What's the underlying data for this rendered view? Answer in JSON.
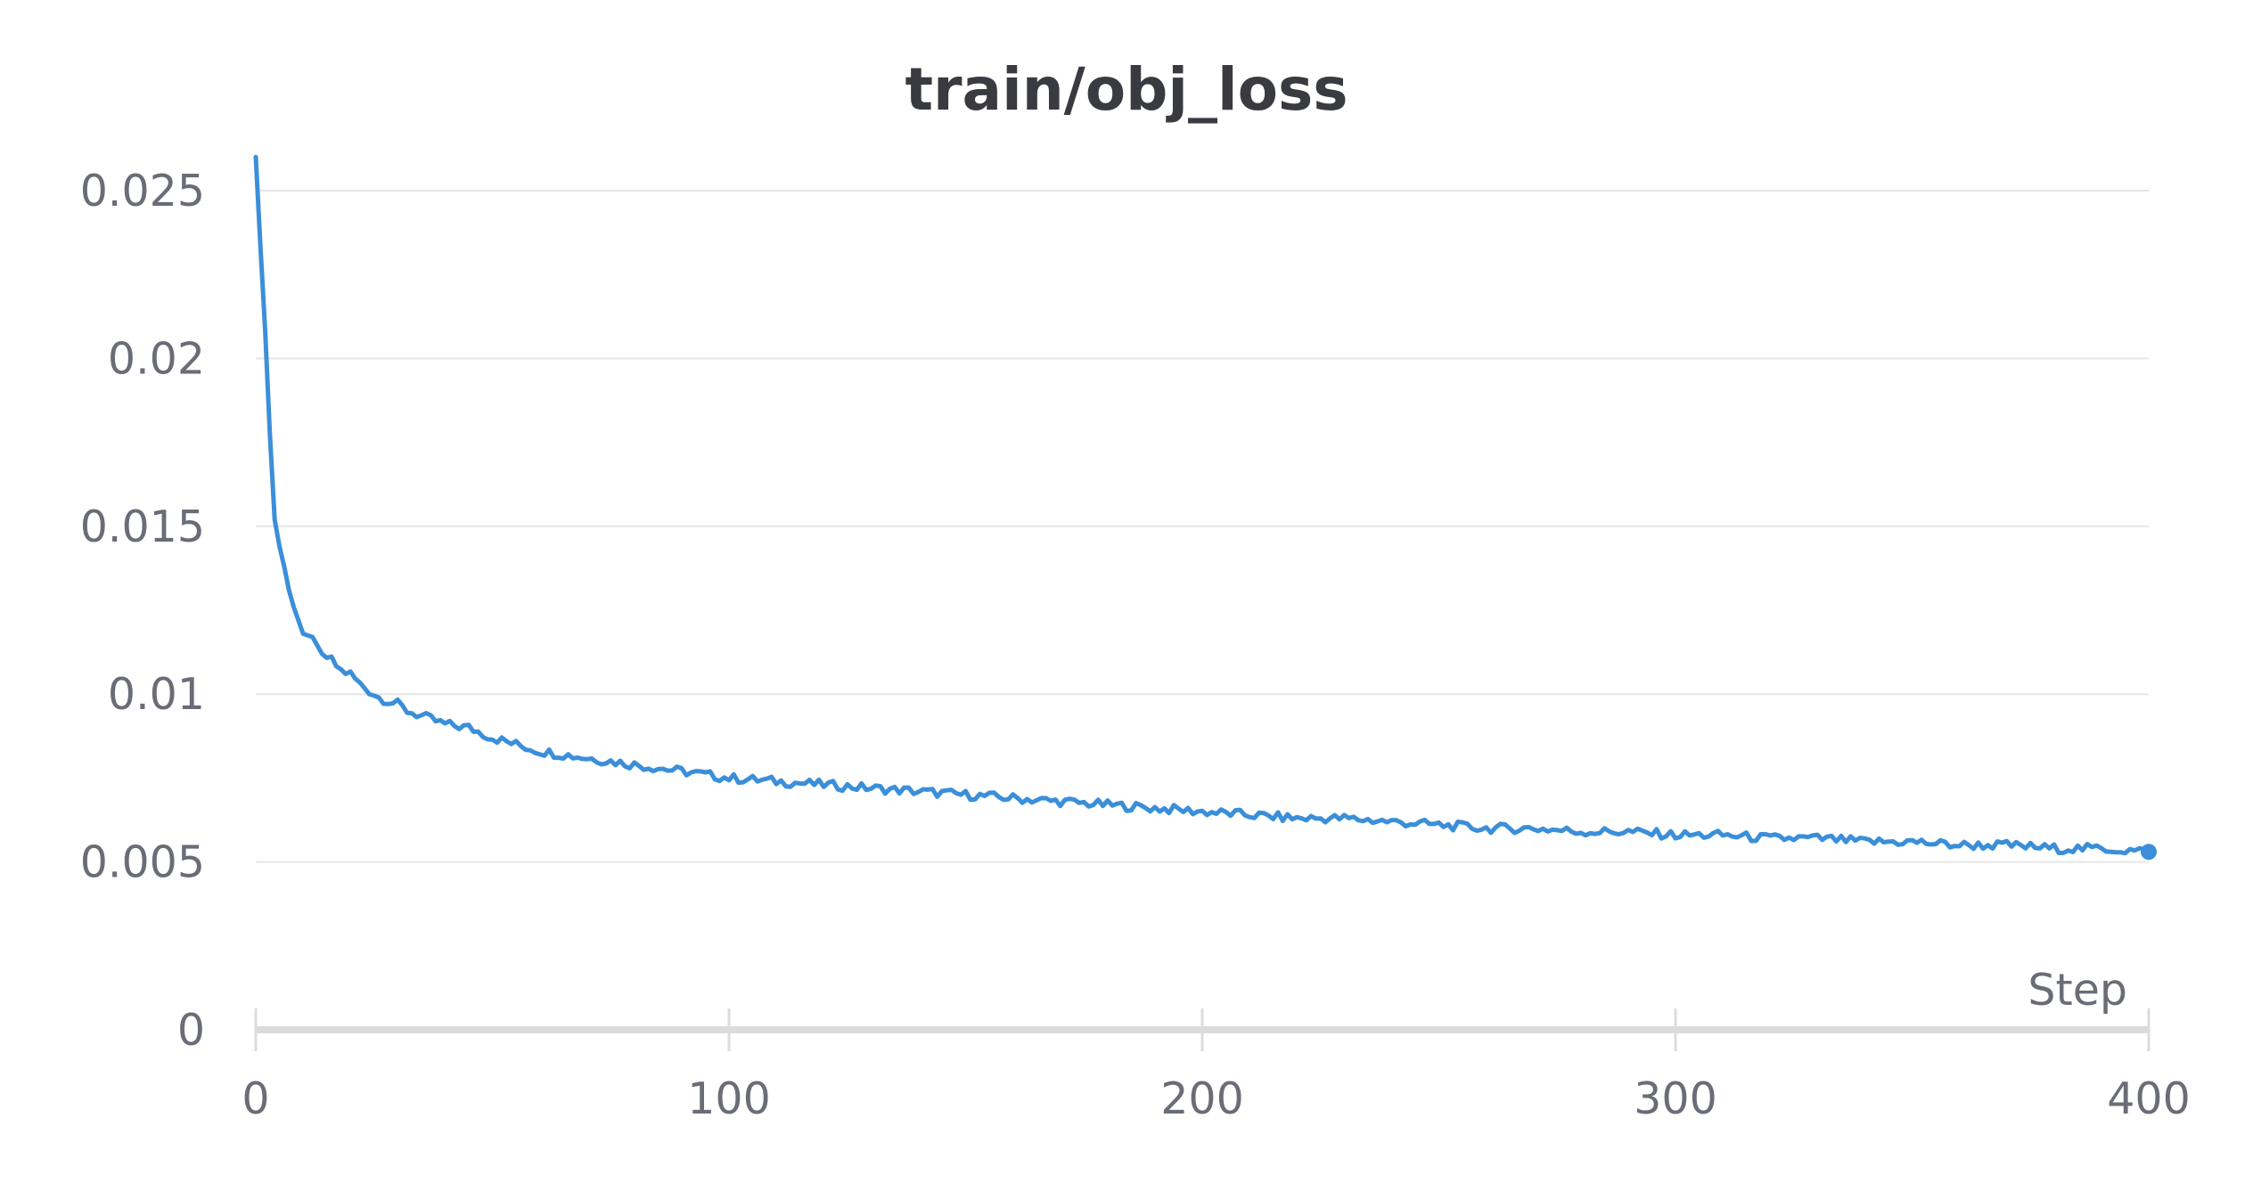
{
  "chart_data": {
    "type": "line",
    "title": "train/obj_loss",
    "xlabel": "Step",
    "ylabel": "",
    "xlim": [
      0,
      400
    ],
    "ylim": [
      0,
      0.026
    ],
    "x_ticks": [
      0,
      100,
      200,
      300,
      400
    ],
    "x_tick_labels": [
      "0",
      "100",
      "200",
      "300",
      "400"
    ],
    "y_ticks": [
      0,
      0.005,
      0.01,
      0.015,
      0.02,
      0.025
    ],
    "y_tick_labels": [
      "0",
      "0.005",
      "0.01",
      "0.015",
      "0.02",
      "0.025"
    ],
    "grid": "horizontal",
    "legend": "none",
    "colors": {
      "series": "#3b8fd9",
      "grid": "#e6e6e6",
      "axis": "#dcdcdc",
      "text": "#6a6c76",
      "title": "#3a3b40"
    },
    "series": [
      {
        "x": [
          0,
          1,
          2,
          3,
          4,
          5,
          6,
          7,
          8,
          9,
          10,
          12,
          14,
          16,
          18,
          20,
          22,
          24,
          26,
          28,
          30,
          32,
          34,
          36,
          38,
          40,
          45,
          50,
          55,
          60,
          65,
          70,
          75,
          80,
          85,
          90,
          95,
          100,
          110,
          120,
          130,
          140,
          150,
          160,
          170,
          180,
          190,
          200,
          210,
          220,
          230,
          240,
          250,
          260,
          270,
          280,
          290,
          300,
          310,
          320,
          330,
          340,
          350,
          360,
          370,
          380,
          390,
          400
        ],
        "y": [
          0.026,
          0.0233,
          0.0208,
          0.0177,
          0.0152,
          0.0144,
          0.0138,
          0.0131,
          0.0126,
          0.0122,
          0.0118,
          0.0117,
          0.0112,
          0.011,
          0.0107,
          0.0106,
          0.0103,
          0.0101,
          0.0099,
          0.0098,
          0.0097,
          0.0095,
          0.0094,
          0.0093,
          0.0092,
          0.0091,
          0.009,
          0.0087,
          0.0085,
          0.0083,
          0.0082,
          0.0081,
          0.008,
          0.0079,
          0.0078,
          0.0077,
          0.0076,
          0.0075,
          0.0074,
          0.0073,
          0.0072,
          0.0071,
          0.007,
          0.0069,
          0.0068,
          0.0067,
          0.0066,
          0.0065,
          0.0064,
          0.0063,
          0.0063,
          0.0062,
          0.0061,
          0.006,
          0.006,
          0.0059,
          0.0059,
          0.0058,
          0.0058,
          0.0057,
          0.0057,
          0.0056,
          0.0056,
          0.0055,
          0.0055,
          0.0054,
          0.0054,
          0.0053
        ]
      }
    ]
  }
}
